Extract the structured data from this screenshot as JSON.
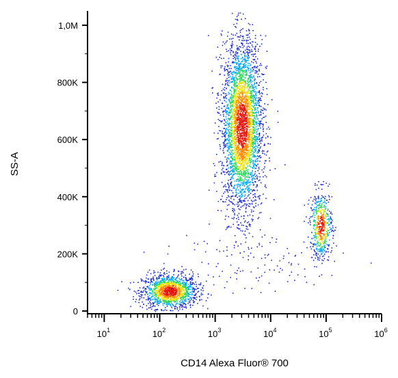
{
  "chart_data": {
    "type": "scatter",
    "plot_style": "flow cytometry density dot plot (pseudocolor)",
    "title": "",
    "xlabel": "CD14 Alexa Fluor® 700",
    "ylabel": "SS-A",
    "x_scale": "log",
    "y_scale": "linear",
    "xlim": [
      5,
      1000000
    ],
    "ylim": [
      0,
      1050000
    ],
    "x_ticks": [
      {
        "value": 10,
        "base": "10",
        "exp": "1"
      },
      {
        "value": 100,
        "base": "10",
        "exp": "2"
      },
      {
        "value": 1000,
        "base": "10",
        "exp": "3"
      },
      {
        "value": 10000,
        "base": "10",
        "exp": "4"
      },
      {
        "value": 100000,
        "base": "10",
        "exp": "5"
      },
      {
        "value": 1000000,
        "base": "10",
        "exp": "6"
      }
    ],
    "y_ticks": [
      {
        "value": 0,
        "label": "0"
      },
      {
        "value": 200000,
        "label": "200K"
      },
      {
        "value": 400000,
        "label": "400K"
      },
      {
        "value": 600000,
        "label": "600K"
      },
      {
        "value": 800000,
        "label": "800K"
      },
      {
        "value": 1000000,
        "label": "1,0M"
      }
    ],
    "grid": false,
    "populations": [
      {
        "center_x": 150,
        "center_y": 70000,
        "spread_log_x": 0.25,
        "spread_y": 30000,
        "relative_size": 1.0
      },
      {
        "center_x": 3000,
        "center_y": 650000,
        "spread_log_x": 0.18,
        "spread_y": 150000,
        "relative_size": 2.5
      },
      {
        "center_x": 80000,
        "center_y": 300000,
        "spread_log_x": 0.1,
        "spread_y": 60000,
        "relative_size": 0.4
      },
      {
        "center_x": 3000,
        "center_y": 170000,
        "spread_log_x": 0.9,
        "spread_y": 60000,
        "relative_size": 0.08
      }
    ],
    "color_scale": [
      "#1a2bd1",
      "#00a7ff",
      "#2bd85c",
      "#f2e200",
      "#ff8a00",
      "#e8140c"
    ]
  }
}
